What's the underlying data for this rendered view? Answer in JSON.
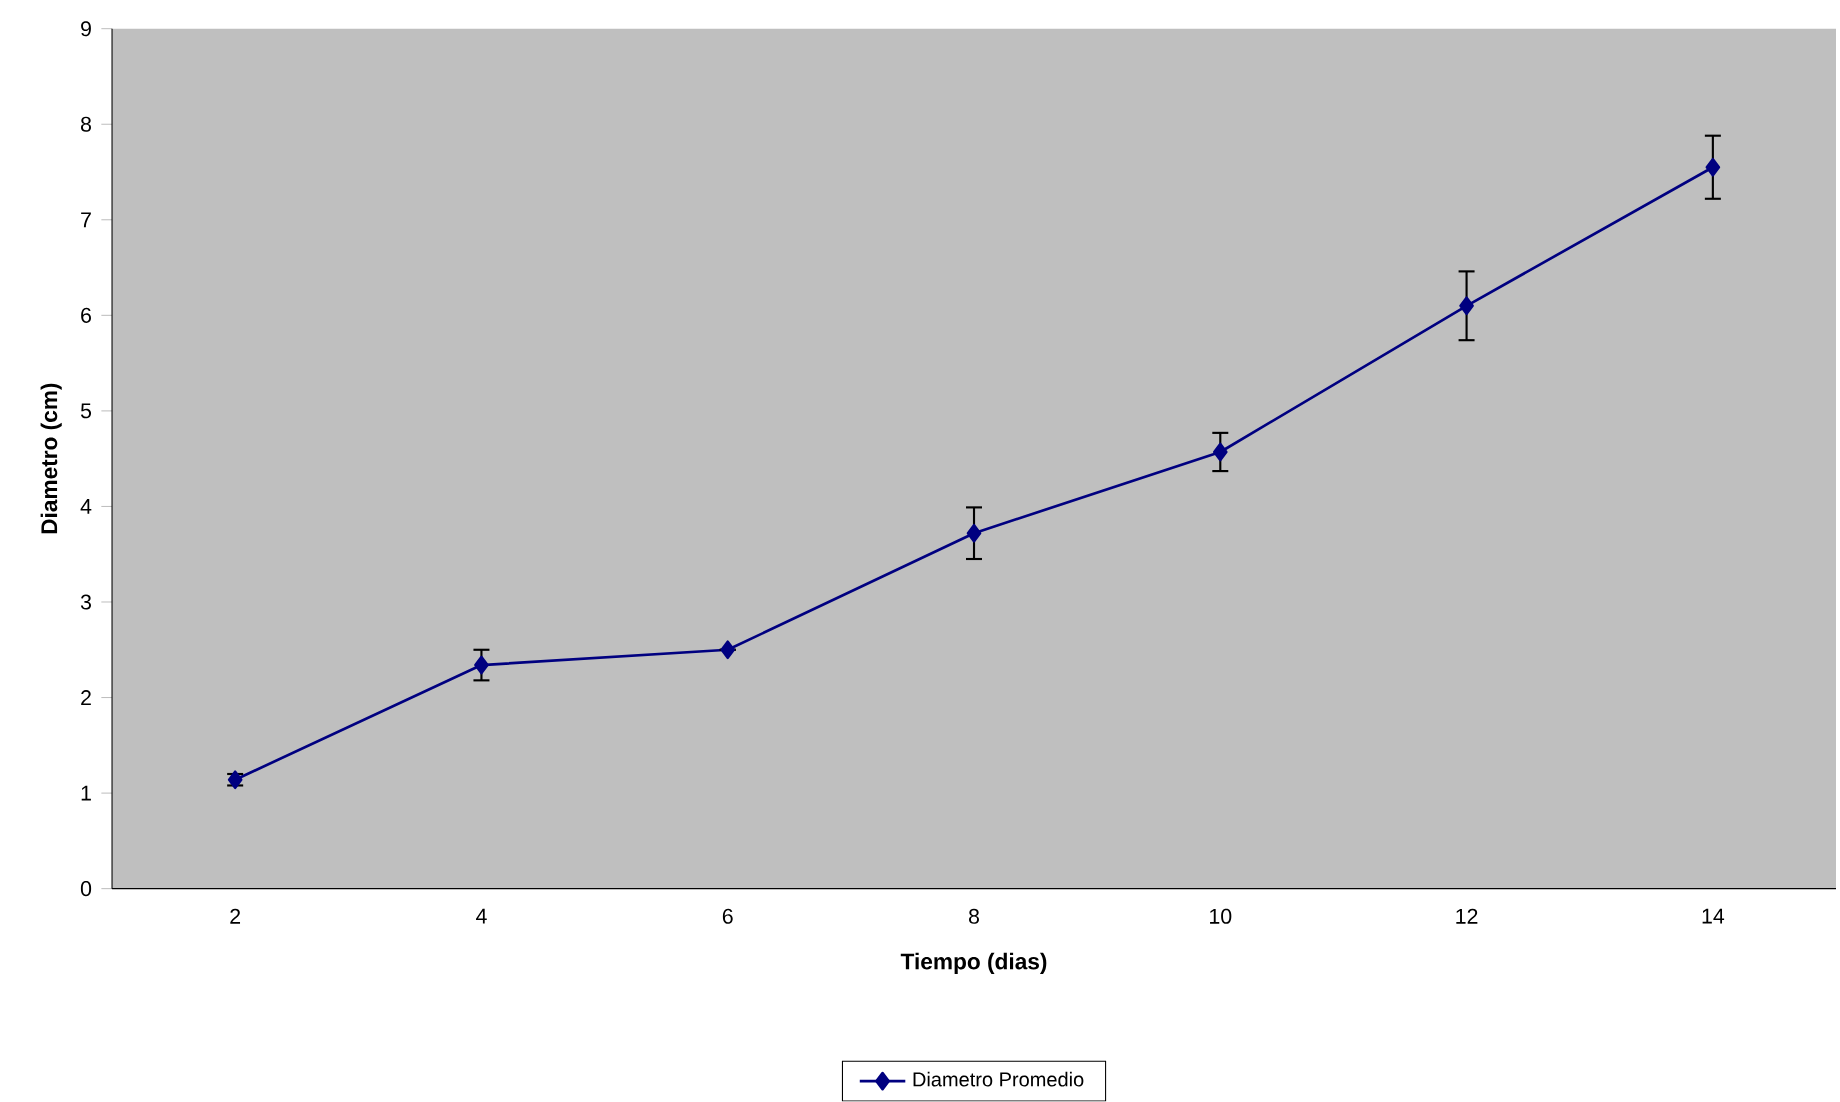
{
  "chart_data": {
    "type": "line",
    "xlabel": "Tiempo (dias)",
    "ylabel": "Diametro (cm)",
    "categories": [
      "2",
      "4",
      "6",
      "8",
      "10",
      "12",
      "14"
    ],
    "series": [
      {
        "name": "Diametro Promedio",
        "color": "#000080",
        "values": [
          1.14,
          2.34,
          2.5,
          3.72,
          4.57,
          6.1,
          7.55
        ],
        "errors": [
          0.06,
          0.16,
          null,
          0.27,
          0.2,
          0.36,
          0.33
        ]
      }
    ],
    "ylim": [
      0,
      9
    ],
    "yticks": [
      0,
      1,
      2,
      3,
      4,
      5,
      6,
      7,
      8,
      9
    ],
    "marker": "diamond",
    "line_style": "solid",
    "legend": "bottom",
    "grid": false
  }
}
